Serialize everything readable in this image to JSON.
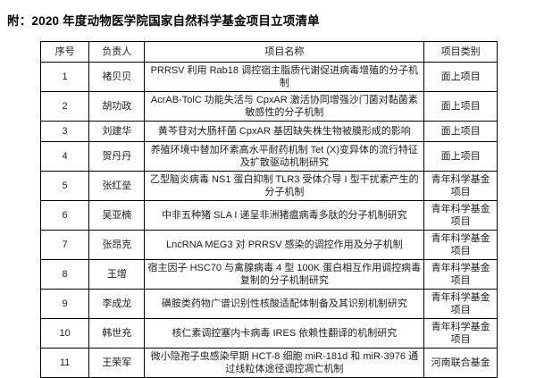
{
  "page": {
    "title": "附：2020 年度动物医学院国家自然科学基金项目立项清单"
  },
  "table": {
    "headers": [
      "序号",
      "负责人",
      "项目名称",
      "项目类别"
    ],
    "rows": [
      {
        "no": "1",
        "leader": "褚贝贝",
        "title": "PRRSV 利用 Rab18 调控宿主脂质代谢促进病毒增殖的分子机制",
        "category": "面上项目"
      },
      {
        "no": "2",
        "leader": "胡功政",
        "title": "AcrAB-TolC 功能失活与 CpxAR 激活协同增强沙门菌对黏菌素敏感性的分子机制",
        "category": "面上项目"
      },
      {
        "no": "3",
        "leader": "刘建华",
        "title": "黄芩苷对大肠杆菌 CpxAR 基因缺失株生物被膜形成的影响",
        "category": "面上项目"
      },
      {
        "no": "4",
        "leader": "贺丹丹",
        "title": "养殖环境中替加环素高水平耐药机制 Tet (X)变异体的流行特征及扩散驱动机制研究",
        "category": "面上项目"
      },
      {
        "no": "5",
        "leader": "张红垒",
        "title": "乙型脑炎病毒 NS1 蛋白抑制 TLR3 受体介导 I 型干扰素产生的分子机制",
        "category": "青年科学基金项目"
      },
      {
        "no": "6",
        "leader": "吴亚楠",
        "title": "中非五种猪 SLA I 递呈非洲猪瘟病毒多肽的分子机制研究",
        "category": "青年科学基金项目"
      },
      {
        "no": "7",
        "leader": "张昂克",
        "title": "LncRNA MEG3 对 PRRSV 感染的调控作用及分子机制",
        "category": "青年科学基金项目"
      },
      {
        "no": "8",
        "leader": "王增",
        "title": "宿主因子 HSC70 与禽腺病毒 4 型 100K 蛋白相互作用调控病毒复制的分子机制研究",
        "category": "青年科学基金项目"
      },
      {
        "no": "9",
        "leader": "李成龙",
        "title": "磺胺类药物广谱识别性核酸适配体制备及其识别机制研究",
        "category": "青年科学基金项目"
      },
      {
        "no": "10",
        "leader": "韩世充",
        "title": "核仁素调控塞内卡病毒 IRES 依赖性翻译的机制研究",
        "category": "青年科学基金项目"
      },
      {
        "no": "11",
        "leader": "王荣军",
        "title": "微小隐孢子虫感染早期 HCT-8 细胞 miR-181d 和 miR-3976 通过线粒体途径调控凋亡机制",
        "category": "河南联合基金"
      }
    ]
  }
}
